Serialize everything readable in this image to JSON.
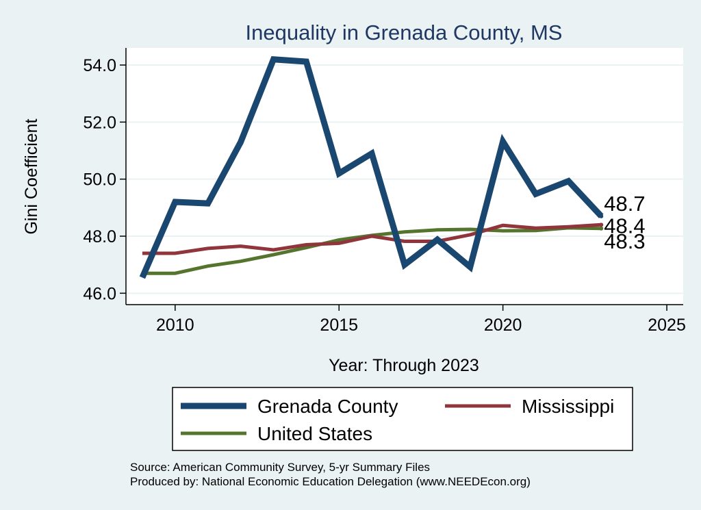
{
  "chart_data": {
    "type": "line",
    "title": "Inequality in Grenada County, MS",
    "xlabel": "Year: Through 2023",
    "ylabel": "Gini Coefficient",
    "xlim": [
      2008.5,
      2025.5
    ],
    "ylim": [
      45.6,
      54.6
    ],
    "x_ticks": [
      2010,
      2015,
      2020,
      2025
    ],
    "y_ticks": [
      46.0,
      48.0,
      50.0,
      52.0,
      54.0
    ],
    "y_tick_labels": [
      "46.0",
      "48.0",
      "50.0",
      "52.0",
      "54.0"
    ],
    "grid": true,
    "legend_position": "bottom",
    "x": [
      2009,
      2010,
      2011,
      2012,
      2013,
      2014,
      2015,
      2016,
      2017,
      2018,
      2019,
      2020,
      2021,
      2022,
      2023
    ],
    "series": [
      {
        "name": "Grenada County",
        "color": "#1a476f",
        "values": [
          46.55,
          49.2,
          49.15,
          51.3,
          54.2,
          54.12,
          50.2,
          50.9,
          47.0,
          47.88,
          46.92,
          51.32,
          49.48,
          49.93,
          48.7
        ],
        "end_label": "48.7"
      },
      {
        "name": "Mississippi",
        "color": "#90353b",
        "values": [
          47.4,
          47.4,
          47.57,
          47.65,
          47.52,
          47.7,
          47.75,
          48.0,
          47.82,
          47.82,
          48.05,
          48.38,
          48.28,
          48.33,
          48.4
        ],
        "end_label": "48.4"
      },
      {
        "name": "United States",
        "color": "#55752f",
        "values": [
          46.7,
          46.7,
          46.95,
          47.12,
          47.35,
          47.6,
          47.87,
          48.03,
          48.15,
          48.22,
          48.24,
          48.19,
          48.2,
          48.29,
          48.27
        ],
        "end_label": "48.3"
      }
    ]
  },
  "source_line": "Source: American Community Survey, 5-yr Summary Files",
  "produced_line": "Produced by: National Economic Education Delegation (www.NEEDEcon.org)"
}
